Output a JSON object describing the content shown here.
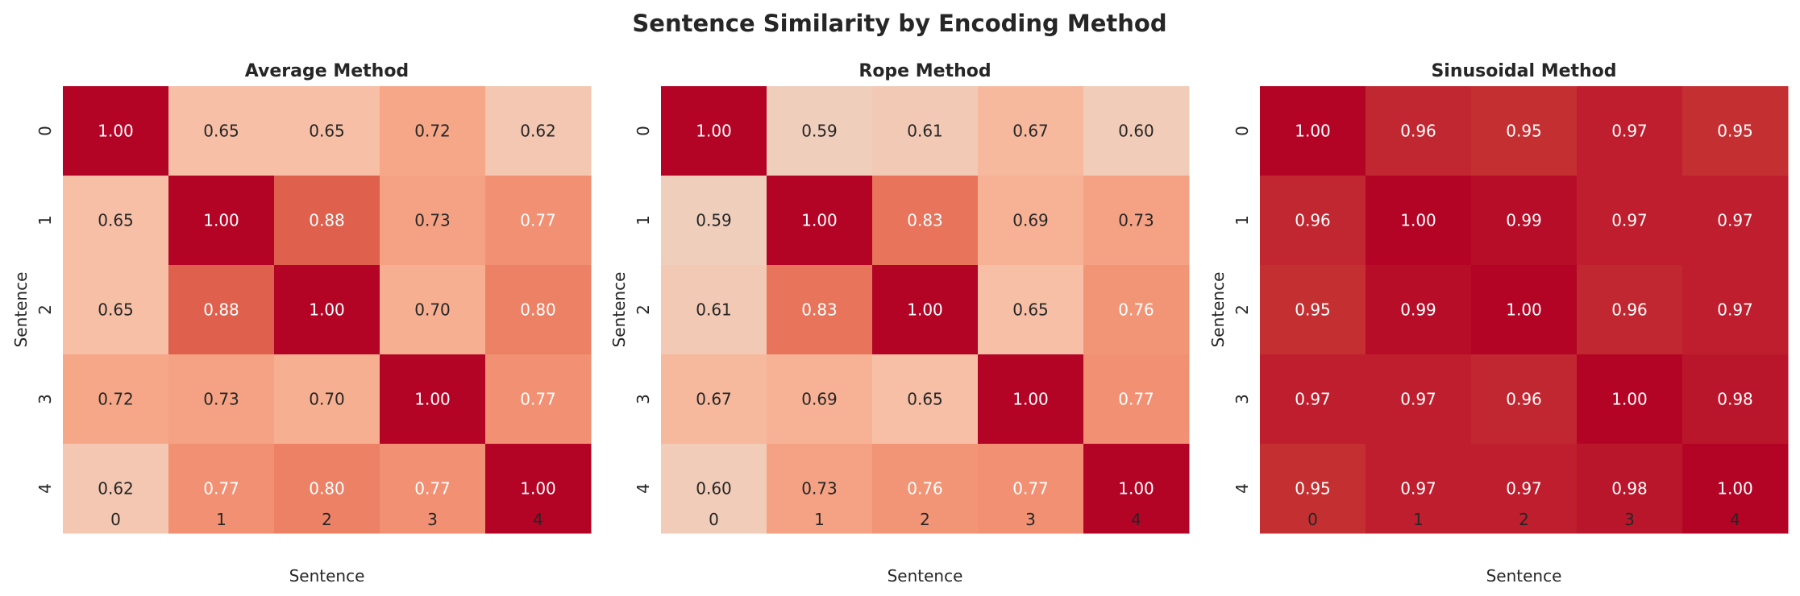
{
  "title": "Sentence Similarity by Encoding Method",
  "chart_data": [
    {
      "type": "heatmap",
      "title": "Average Method",
      "xlabel": "Sentence",
      "ylabel": "Sentence",
      "x_ticks": [
        "0",
        "1",
        "2",
        "3",
        "4"
      ],
      "y_ticks": [
        "0",
        "1",
        "2",
        "3",
        "4"
      ],
      "colormap": "coolwarm",
      "color_range": [
        0,
        1
      ],
      "colorbar": false,
      "values": [
        [
          1.0,
          0.65,
          0.65,
          0.72,
          0.62
        ],
        [
          0.65,
          1.0,
          0.88,
          0.73,
          0.77
        ],
        [
          0.65,
          0.88,
          1.0,
          0.7,
          0.8
        ],
        [
          0.72,
          0.73,
          0.7,
          1.0,
          0.77
        ],
        [
          0.62,
          0.77,
          0.8,
          0.77,
          1.0
        ]
      ]
    },
    {
      "type": "heatmap",
      "title": "Rope Method",
      "xlabel": "Sentence",
      "ylabel": "Sentence",
      "x_ticks": [
        "0",
        "1",
        "2",
        "3",
        "4"
      ],
      "y_ticks": [
        "0",
        "1",
        "2",
        "3",
        "4"
      ],
      "colormap": "coolwarm",
      "color_range": [
        0,
        1
      ],
      "colorbar": false,
      "values": [
        [
          1.0,
          0.59,
          0.61,
          0.67,
          0.6
        ],
        [
          0.59,
          1.0,
          0.83,
          0.69,
          0.73
        ],
        [
          0.61,
          0.83,
          1.0,
          0.65,
          0.76
        ],
        [
          0.67,
          0.69,
          0.65,
          1.0,
          0.77
        ],
        [
          0.6,
          0.73,
          0.76,
          0.77,
          1.0
        ]
      ]
    },
    {
      "type": "heatmap",
      "title": "Sinusoidal Method",
      "xlabel": "Sentence",
      "ylabel": "Sentence",
      "x_ticks": [
        "0",
        "1",
        "2",
        "3",
        "4"
      ],
      "y_ticks": [
        "0",
        "1",
        "2",
        "3",
        "4"
      ],
      "colormap": "coolwarm",
      "color_range": [
        0,
        1
      ],
      "colorbar": false,
      "values": [
        [
          1.0,
          0.96,
          0.95,
          0.97,
          0.95
        ],
        [
          0.96,
          1.0,
          0.99,
          0.97,
          0.97
        ],
        [
          0.95,
          0.99,
          1.0,
          0.96,
          0.97
        ],
        [
          0.97,
          0.97,
          0.96,
          1.0,
          0.98
        ],
        [
          0.95,
          0.97,
          0.97,
          0.98,
          1.0
        ]
      ]
    }
  ]
}
